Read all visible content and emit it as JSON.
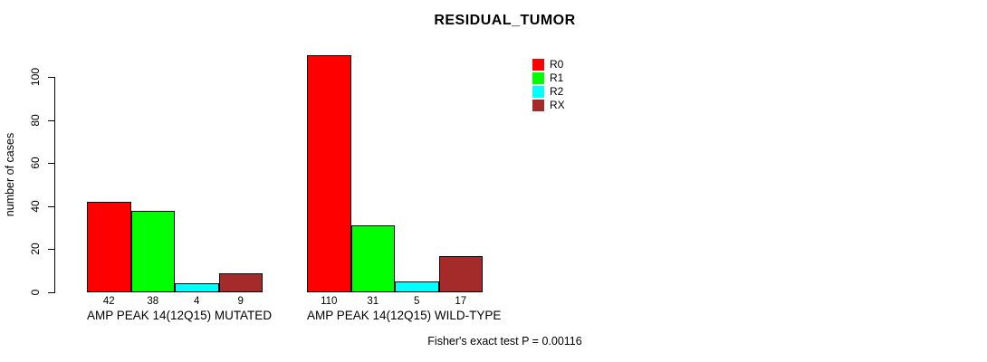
{
  "chart_data": {
    "type": "bar",
    "title": "RESIDUAL_TUMOR",
    "ylabel": "number of cases",
    "xlabel": "",
    "ylim": [
      0,
      110
    ],
    "yticks": [
      0,
      20,
      40,
      60,
      80,
      100
    ],
    "grid": false,
    "legend_position": "top-right",
    "bar_value_labels_shown": true,
    "categories": [
      "AMP PEAK 14(12Q15) MUTATED",
      "AMP PEAK 14(12Q15) WILD-TYPE"
    ],
    "series": [
      {
        "name": "R0",
        "color": "#FF0000",
        "values": [
          42,
          110
        ]
      },
      {
        "name": "R1",
        "color": "#00FF00",
        "values": [
          38,
          31
        ]
      },
      {
        "name": "R2",
        "color": "#00FFFF",
        "values": [
          4,
          5
        ]
      },
      {
        "name": "RX",
        "color": "#A52A2A",
        "values": [
          9,
          17
        ]
      }
    ],
    "annotation": "Fisher's exact test P = 0.00116",
    "colors": {
      "background": "#FFFFFF",
      "axis": "#000000",
      "text": "#000000",
      "bar_border": "#000000"
    }
  }
}
